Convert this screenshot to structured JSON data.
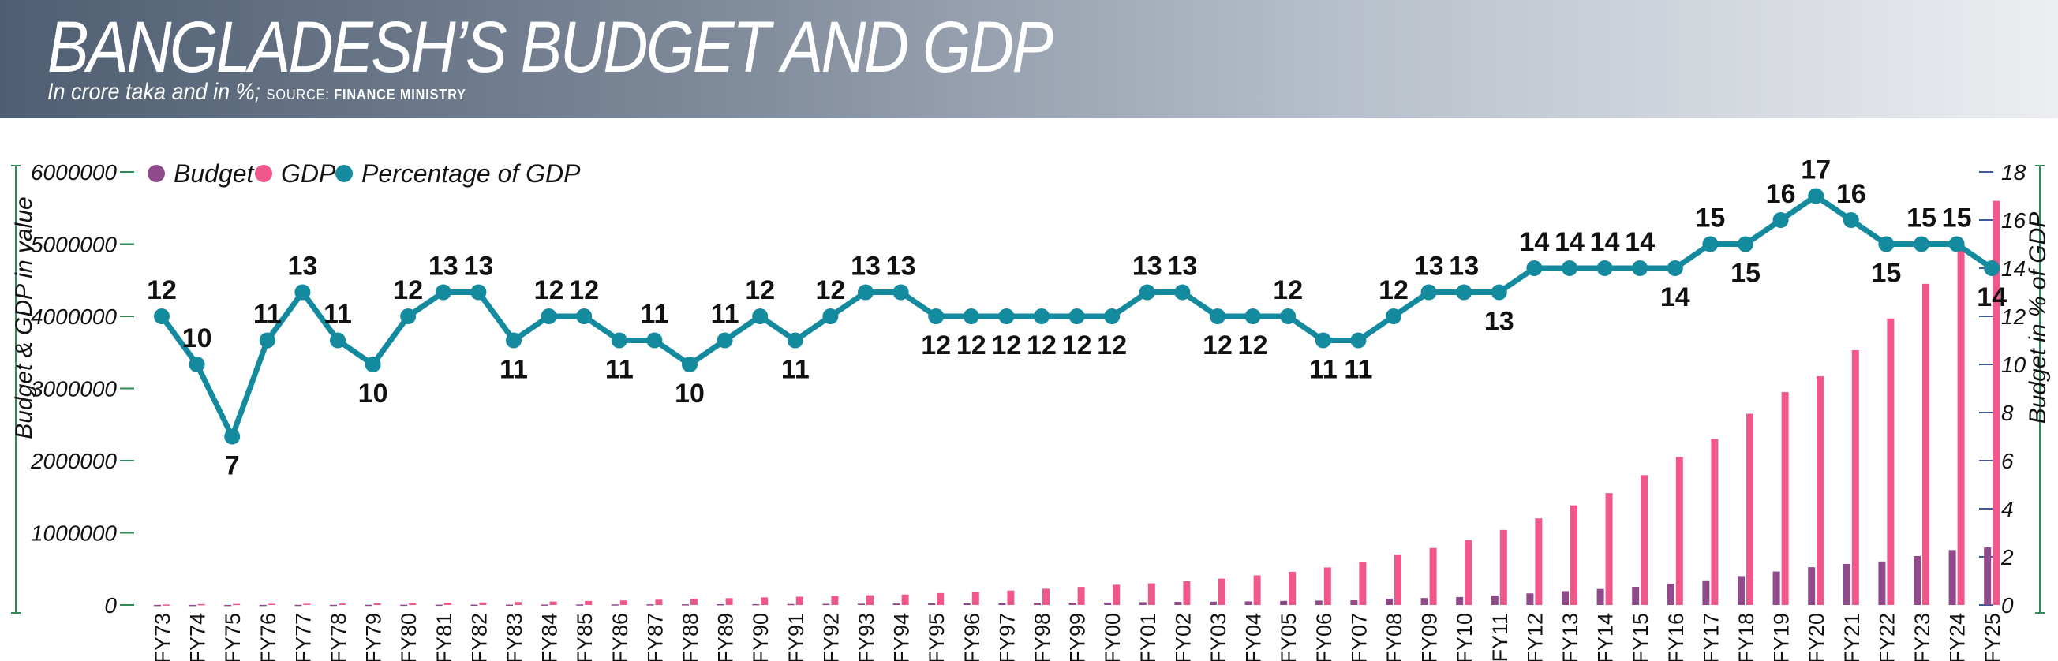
{
  "header": {
    "title": "BANGLADESH’S BUDGET AND GDP",
    "subtitle": "In crore taka and in %;",
    "source_label": "SOURCE:",
    "source_name": "FINANCE MINISTRY"
  },
  "colors": {
    "budget": "#8e4a8a",
    "gdp": "#f0578a",
    "pct": "#138a9e",
    "axis_left": "#2e8b57",
    "axis_right": "#3b5998",
    "label": "#111111"
  },
  "chart_data": {
    "type": "bar",
    "categories": [
      "FY73",
      "FY74",
      "FY75",
      "FY76",
      "FY77",
      "FY78",
      "FY79",
      "FY80",
      "FY81",
      "FY82",
      "FY83",
      "FY84",
      "FY85",
      "FY86",
      "FY87",
      "FY88",
      "FY89",
      "FY90",
      "FY91",
      "FY92",
      "FY93",
      "FY94",
      "FY95",
      "FY96",
      "FY97",
      "FY98",
      "FY99",
      "FY00",
      "FY01",
      "FY02",
      "FY03",
      "FY04",
      "FY05",
      "FY06",
      "FY07",
      "FY08",
      "FY09",
      "FY10",
      "FY11",
      "FY12",
      "FY13",
      "FY14",
      "FY15",
      "FY16",
      "FY17",
      "FY18",
      "FY19",
      "FY20",
      "FY21",
      "FY22",
      "FY23",
      "FY24",
      "FY25"
    ],
    "series": [
      {
        "name": "Budget",
        "axis": "left",
        "values": [
          1000,
          1200,
          1100,
          1600,
          2200,
          2600,
          3000,
          3900,
          4600,
          5000,
          5400,
          6400,
          7400,
          8200,
          9100,
          9800,
          11000,
          12000,
          13600,
          15600,
          18000,
          20400,
          22000,
          24000,
          25900,
          28500,
          31500,
          34300,
          38500,
          43000,
          45700,
          50000,
          57000,
          61000,
          65000,
          88000,
          96000,
          110000,
          131000,
          161000,
          192000,
          222000,
          251000,
          295000,
          341000,
          400000,
          464000,
          523000,
          568000,
          603000,
          678000,
          761000,
          797000
        ]
      },
      {
        "name": "GDP",
        "axis": "left",
        "values": [
          7000,
          12000,
          15000,
          16000,
          17000,
          20000,
          24000,
          28000,
          31000,
          35000,
          41000,
          48000,
          56000,
          63000,
          73000,
          84000,
          95000,
          105000,
          115000,
          125000,
          135000,
          145000,
          165000,
          180000,
          200000,
          225000,
          250000,
          280000,
          300000,
          330000,
          365000,
          410000,
          460000,
          520000,
          600000,
          700000,
          790000,
          900000,
          1040000,
          1200000,
          1380000,
          1550000,
          1800000,
          2050000,
          2300000,
          2650000,
          2950000,
          3170000,
          3530000,
          3970000,
          4450000,
          5000000,
          5600000
        ]
      },
      {
        "name": "Percentage of GDP",
        "axis": "right",
        "type": "line",
        "values": [
          12,
          10,
          7,
          11,
          13,
          11,
          10,
          12,
          13,
          13,
          11,
          12,
          12,
          11,
          11,
          10,
          11,
          12,
          11,
          12,
          13,
          13,
          12,
          12,
          12,
          12,
          12,
          12,
          13,
          13,
          12,
          12,
          12,
          11,
          11,
          12,
          13,
          13,
          13,
          14,
          14,
          14,
          14,
          14,
          15,
          15,
          16,
          17,
          16,
          15,
          15,
          15,
          14
        ],
        "labels": [
          "12",
          "10",
          "7",
          "11",
          "13",
          "11",
          "10",
          "12",
          "13",
          "13",
          "11",
          "12",
          "12",
          "11",
          "11",
          "10",
          "11",
          "12",
          "11",
          "12",
          "13",
          "13",
          "12",
          "12",
          "12",
          "12",
          "12",
          "12",
          "13",
          "13",
          "12",
          "12",
          "12",
          "11",
          "11",
          "12",
          "13",
          "13",
          "13",
          "14",
          "14",
          "14",
          "14",
          "14",
          "15",
          "15",
          "16",
          "17",
          "16",
          "15",
          "15",
          "15",
          "14"
        ]
      }
    ],
    "y_left": {
      "label": "Budget & GDP in value",
      "ylim": [
        0,
        6000000
      ],
      "ticks": [
        "0",
        "1000000",
        "2000000",
        "3000000",
        "4000000",
        "5000000",
        "6000000"
      ],
      "tick_values": [
        0,
        1000000,
        2000000,
        3000000,
        4000000,
        5000000,
        6000000
      ]
    },
    "y_right": {
      "label": "Budget in % of GDP",
      "ylim": [
        0,
        18
      ],
      "ticks": [
        "0",
        "2",
        "4",
        "6",
        "8",
        "10",
        "12",
        "14",
        "16",
        "18"
      ],
      "tick_values": [
        0,
        2,
        4,
        6,
        8,
        10,
        12,
        14,
        16,
        18
      ]
    },
    "legend": {
      "position": "top-left",
      "items": [
        "Budget",
        "GDP",
        "Percentage of GDP"
      ]
    },
    "grid": false
  }
}
